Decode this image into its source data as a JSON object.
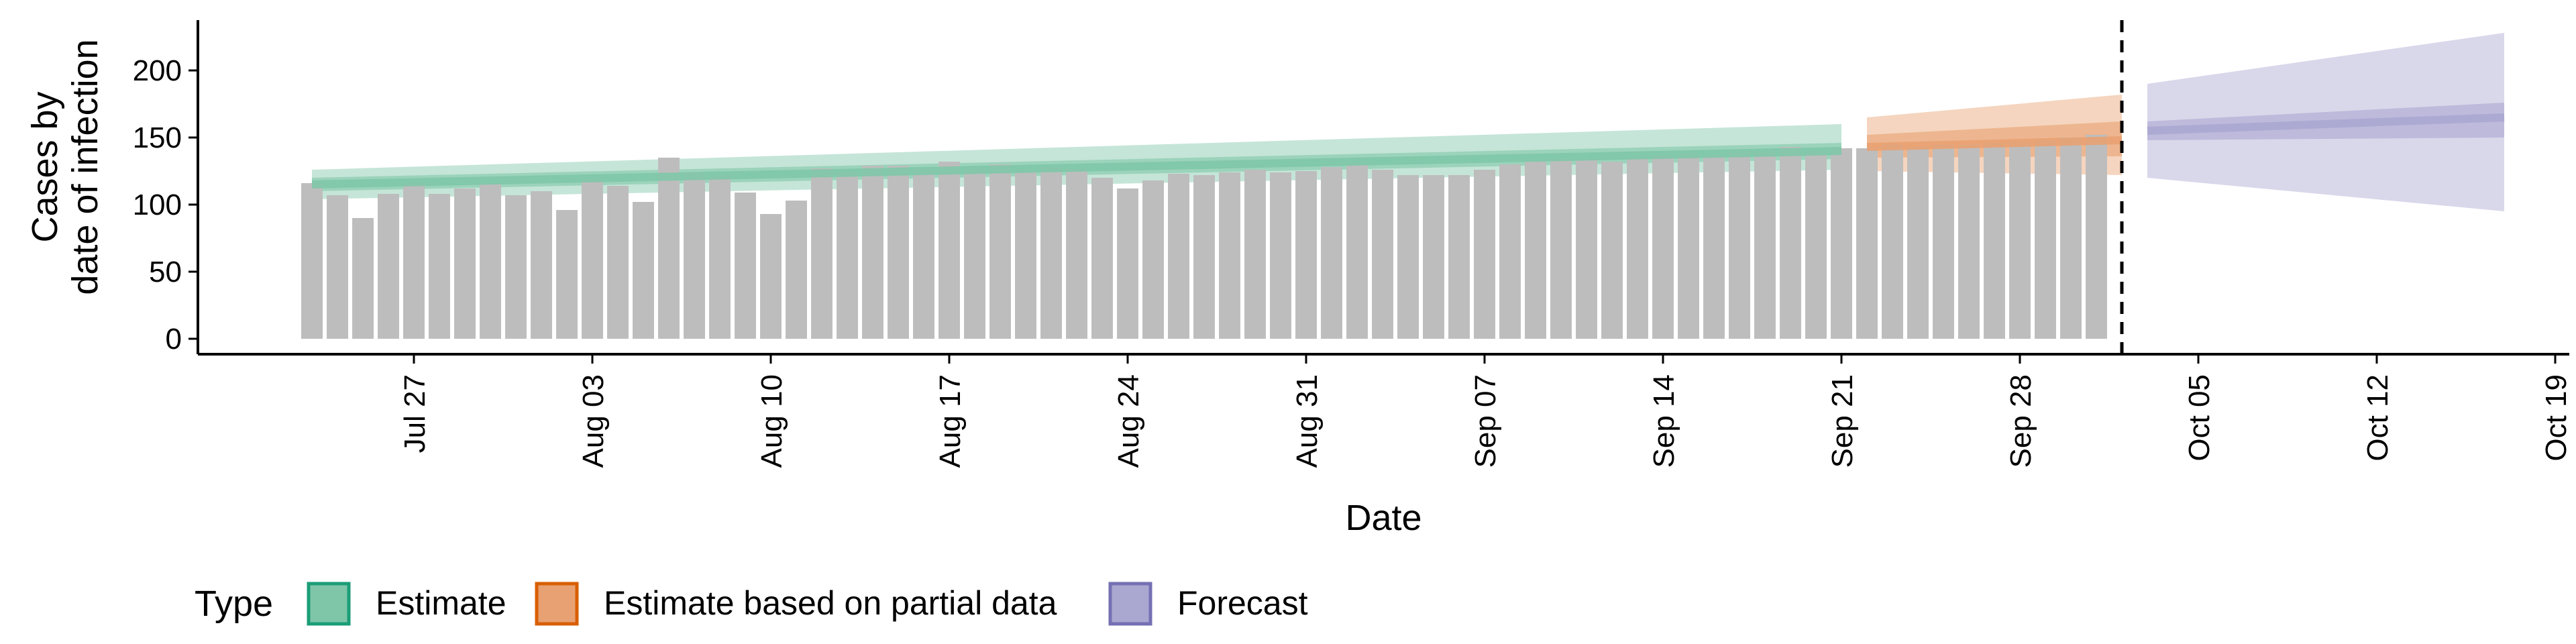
{
  "chart_data": {
    "type": "bar",
    "title": "",
    "xlabel": "Date",
    "ylabel": [
      "Cases by",
      "date of infection"
    ],
    "ylim": [
      0,
      240
    ],
    "y_ticks": [
      0,
      50,
      100,
      150,
      200
    ],
    "x_tick_labels": [
      "Jul 27",
      "Aug 03",
      "Aug 10",
      "Aug 17",
      "Aug 24",
      "Aug 31",
      "Sep 07",
      "Sep 14",
      "Sep 21",
      "Sep 28",
      "Oct 05",
      "Oct 12",
      "Oct 19"
    ],
    "grid": false,
    "legend_position": "bottom",
    "reference_line": "Oct 02",
    "bars": {
      "color": "#bdbdbd",
      "start_date": "Jul 23",
      "values": [
        116,
        107,
        90,
        108,
        116,
        108,
        112,
        116,
        107,
        110,
        96,
        119,
        114,
        102,
        135,
        124,
        122,
        109,
        93,
        103,
        127,
        125,
        129,
        129,
        127,
        132,
        127,
        130,
        125,
        128,
        127,
        120,
        112,
        118,
        123,
        122,
        124,
        126,
        124,
        125,
        128,
        130,
        126,
        122,
        122,
        122,
        126,
        130,
        132,
        134,
        134,
        132,
        135,
        137,
        138,
        137,
        140,
        140,
        143,
        140,
        142,
        142,
        145,
        143,
        145,
        145,
        146,
        147,
        148,
        150,
        152
      ]
    },
    "series": [
      {
        "name": "Estimate",
        "color": "#1b9e77",
        "fill": "#7fc6a9",
        "start_date": "Jul 23",
        "end_date": "Sep 21",
        "median": [
          115,
          140
        ],
        "inner": [
          [
            110,
            120
          ],
          [
            134,
            146
          ]
        ],
        "outer": [
          [
            104,
            126
          ],
          [
            126,
            160
          ]
        ]
      },
      {
        "name": "Estimate based on partial data",
        "color": "#d95f02",
        "fill": "#e8a172",
        "start_date": "Sep 22",
        "end_date": "Oct 02",
        "median": [
          143,
          148
        ],
        "inner": [
          [
            135,
            152
          ],
          [
            136,
            162
          ]
        ],
        "outer": [
          [
            125,
            165
          ],
          [
            122,
            182
          ]
        ]
      },
      {
        "name": "Forecast",
        "color": "#7570b3",
        "fill": "#aaa7d1",
        "start_date": "Oct 03",
        "end_date": "Oct 17",
        "median": [
          155,
          165
        ],
        "inner": [
          [
            148,
            162
          ],
          [
            150,
            176
          ]
        ],
        "outer": [
          [
            120,
            190
          ],
          [
            95,
            228
          ]
        ]
      }
    ]
  },
  "legend": {
    "title": "Type",
    "items": [
      {
        "label": "Estimate",
        "fill": "#7fc6a9",
        "stroke": "#1b9e77"
      },
      {
        "label": "Estimate based on partial data",
        "fill": "#e8a172",
        "stroke": "#d95f02"
      },
      {
        "label": "Forecast",
        "fill": "#aaa7d1",
        "stroke": "#7570b3"
      }
    ]
  }
}
